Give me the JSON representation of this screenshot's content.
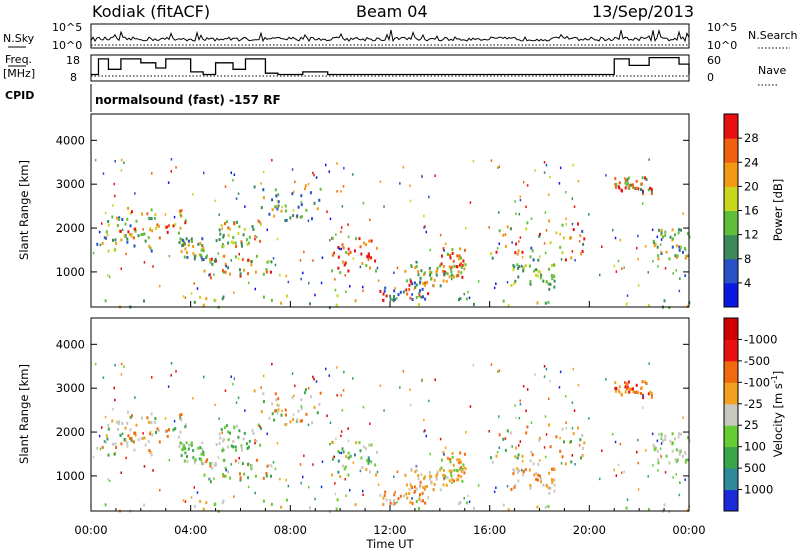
{
  "chart_data": [
    {
      "type": "line",
      "name": "status-panels",
      "title_left": "Kodiak (fitACF)",
      "title_center": "Beam 04",
      "title_right": "13/Sep/2013",
      "nsky_label": "N.Sky",
      "nsky_ticks": [
        "10^5",
        "10^0"
      ],
      "nsearch_label": "N.Search",
      "freq_label": "Freq.",
      "freq_unit": "[MHz]",
      "freq_ticks": [
        "18",
        "8"
      ],
      "freq_ylim": [
        8,
        18
      ],
      "nave_label": "Nave",
      "nave_ticks": [
        "60",
        "0"
      ],
      "nave_ylim": [
        0,
        60
      ],
      "cpid_label": "CPID",
      "cpid_text": "normalsound (fast) -157 RF",
      "freq_steps_hours": [
        0,
        0.3,
        0.7,
        1.2,
        2.0,
        2.6,
        3.0,
        3.5,
        4.0,
        4.5,
        5.0,
        5.7,
        6.2,
        7.0,
        7.5,
        8.5,
        9.5,
        12.0,
        14.0,
        16.0,
        18.0,
        19.5,
        20.6,
        21.0,
        21.6,
        22.4,
        23.0,
        23.6,
        24.0
      ],
      "freq_steps_mhz": [
        10.5,
        16.5,
        12.5,
        16.5,
        15.0,
        13.0,
        16.5,
        16.5,
        11.5,
        10.5,
        15.0,
        12.5,
        16.5,
        11.0,
        10.5,
        11.5,
        10.5,
        10.5,
        10.5,
        10.5,
        10.5,
        10.5,
        10.5,
        16.5,
        14.0,
        17.0,
        17.0,
        14.5,
        10.5
      ]
    },
    {
      "type": "heatmap",
      "name": "power",
      "ylabel": "Slant Range [km]",
      "colorbar_label": "Power [dB]",
      "colorbar_ticks": [
        "4",
        "8",
        "12",
        "16",
        "20",
        "24",
        "28"
      ],
      "colors": [
        "#0b18e0",
        "#2a52c8",
        "#3c8a5a",
        "#5fbf3a",
        "#c9d61e",
        "#f29a14",
        "#f06010",
        "#e81010"
      ],
      "yticks": [
        1000,
        2000,
        3000,
        4000
      ],
      "ylim": [
        200,
        4600
      ]
    },
    {
      "type": "heatmap",
      "name": "velocity",
      "ylabel": "Slant Range [km]",
      "colorbar_label": "Velocity [m s",
      "colorbar_label_sup": "-1",
      "colorbar_ticks": [
        "1000",
        "500",
        "100",
        "25",
        "-25",
        "-100",
        "-500",
        "-1000"
      ],
      "colors": [
        "#1c2bd8",
        "#2e8a9a",
        "#3aa64a",
        "#66cc33",
        "#c8c8c0",
        "#f2a020",
        "#f26a10",
        "#e81010",
        "#d00000"
      ],
      "yticks": [
        1000,
        2000,
        3000,
        4000
      ],
      "ylim": [
        200,
        4600
      ],
      "xticks": [
        "00:00",
        "04:00",
        "08:00",
        "12:00",
        "16:00",
        "20:00",
        "00:00"
      ],
      "xlabel": "Time UT",
      "xlim_hours": [
        0,
        24
      ]
    }
  ]
}
